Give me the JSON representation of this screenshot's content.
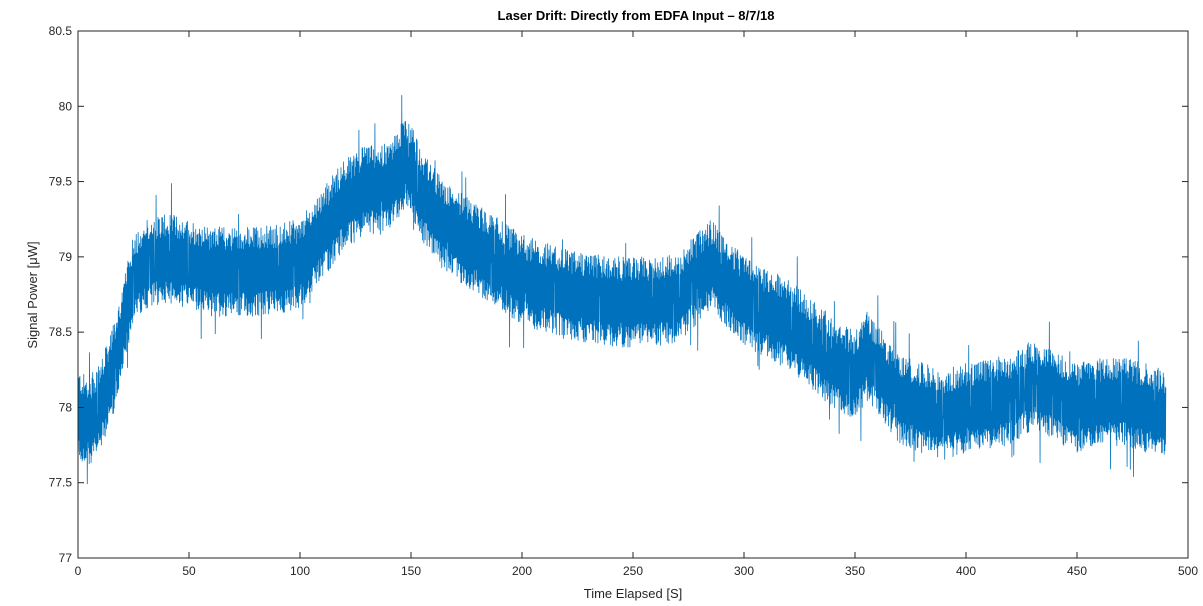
{
  "chart_data": {
    "type": "line",
    "title": "Laser Drift: Directly from EDFA Input – 8/7/18",
    "xlabel": "Time Elapsed [S]",
    "ylabel": "Signal Power [μW]",
    "xlim": [
      0,
      500
    ],
    "ylim": [
      77,
      80.5
    ],
    "xticks": [
      0,
      50,
      100,
      150,
      200,
      250,
      300,
      350,
      400,
      450,
      500
    ],
    "yticks": [
      77,
      77.5,
      78,
      78.5,
      79,
      79.5,
      80,
      80.5
    ],
    "xtick_labels": [
      "0",
      "50",
      "100",
      "150",
      "200",
      "250",
      "300",
      "350",
      "400",
      "450",
      "500"
    ],
    "ytick_labels": [
      "77",
      "77.5",
      "78",
      "78.5",
      "79",
      "79.5",
      "80",
      "80.5"
    ],
    "grid": false,
    "line_color": "#0072BD",
    "series": [
      {
        "name": "",
        "x_range": [
          0,
          490
        ],
        "noise_amplitude": 0.3,
        "trend_x": [
          0,
          5,
          10,
          15,
          20,
          25,
          30,
          40,
          50,
          60,
          70,
          80,
          90,
          100,
          110,
          120,
          130,
          140,
          148,
          155,
          165,
          180,
          200,
          220,
          240,
          260,
          270,
          285,
          300,
          320,
          340,
          350,
          355,
          370,
          390,
          400,
          420,
          430,
          450,
          470,
          490
        ],
        "trend_y": [
          77.95,
          77.9,
          78.0,
          78.2,
          78.5,
          78.85,
          78.95,
          79.0,
          78.95,
          78.9,
          78.9,
          78.9,
          78.92,
          78.95,
          79.15,
          79.35,
          79.45,
          79.45,
          79.65,
          79.4,
          79.2,
          79.05,
          78.85,
          78.75,
          78.7,
          78.7,
          78.72,
          78.95,
          78.7,
          78.55,
          78.3,
          78.2,
          78.35,
          78.05,
          77.95,
          78.0,
          78.05,
          78.15,
          78.0,
          78.05,
          77.95
        ]
      }
    ]
  }
}
